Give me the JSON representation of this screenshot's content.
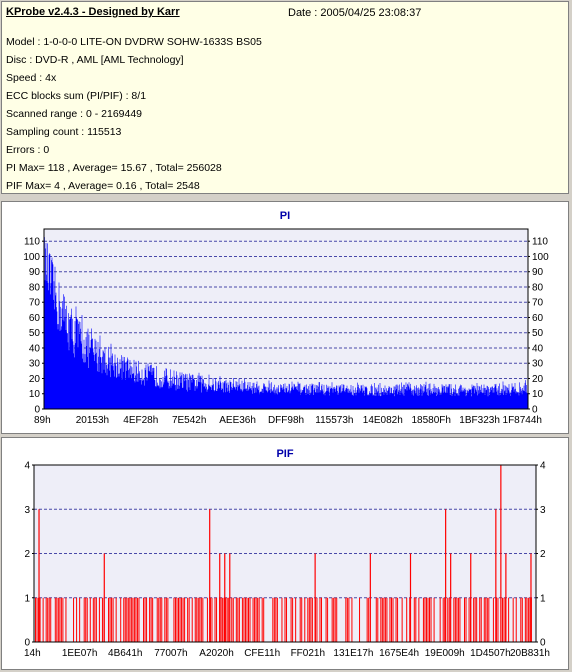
{
  "header": {
    "title": "KProbe v2.4.3 - Designed by Karr",
    "date": "Date : 2005/04/25 23:08:37"
  },
  "info": {
    "model": "Model : 1-0-0-0 LITE-ON DVDRW SOHW-1633S BS05",
    "disc": "Disc : DVD-R , AML [AML Technology]",
    "speed": "Speed : 4x",
    "ecc": "ECC blocks sum (PI/PIF) : 8/1",
    "range": "Scanned range : 0 - 2169449",
    "sampling": "Sampling count : 115513",
    "errors": "Errors : 0",
    "pi_summary": "PI Max= 118 , Average= 15.67 , Total= 256028",
    "pif_summary": "PIF Max= 4 , Average= 0.16 , Total= 2548"
  },
  "colors": {
    "pi_bars": "#0000ff",
    "pif_bars": "#ff0000",
    "plot_bg": "#eeeef8",
    "grid": "#4848a8",
    "title": "#0000aa"
  },
  "chart_data": [
    {
      "type": "bar",
      "title": "PI",
      "xlabel": "",
      "ylabel": "",
      "ylim": [
        0,
        118
      ],
      "y_ticks": [
        0,
        10,
        20,
        30,
        40,
        50,
        60,
        70,
        80,
        90,
        100,
        110
      ],
      "x_tick_labels": [
        "89h",
        "20153h",
        "4EF28h",
        "7E542h",
        "AEE36h",
        "DFF98h",
        "115573h",
        "14E082h",
        "18580Fh",
        "1BF323h",
        "1F8744h"
      ],
      "grid": "horizontal dashed",
      "envelope": {
        "x": [
          0,
          0.01,
          0.03,
          0.06,
          0.1,
          0.15,
          0.2,
          0.25,
          0.3,
          0.35,
          0.4,
          0.45,
          0.5,
          0.6,
          0.7,
          0.8,
          0.9,
          1.0
        ],
        "avg": [
          98,
          80,
          62,
          45,
          33,
          26,
          21,
          18,
          15.5,
          14,
          13.5,
          12.5,
          12,
          11.5,
          11,
          11.5,
          11,
          12
        ],
        "peak": [
          118,
          112,
          90,
          70,
          52,
          40,
          33,
          29,
          25,
          22,
          20,
          19,
          18,
          17.5,
          17,
          18,
          17,
          19
        ]
      }
    },
    {
      "type": "bar",
      "title": "PIF",
      "xlabel": "",
      "ylabel": "",
      "ylim": [
        0,
        4
      ],
      "y_ticks": [
        0,
        1,
        2,
        3,
        4
      ],
      "x_tick_labels": [
        "14h",
        "1EE07h",
        "4B641h",
        "77007h",
        "A2020h",
        "CFE11h",
        "FF021h",
        "131E17h",
        "1675E4h",
        "19E009h",
        "1D4507h",
        "20B831h"
      ],
      "grid": "horizontal dashed",
      "notable_values": [
        {
          "x": 0.01,
          "value": 3
        },
        {
          "x": 0.14,
          "value": 2
        },
        {
          "x": 0.35,
          "value": 3
        },
        {
          "x": 0.37,
          "value": 2
        },
        {
          "x": 0.38,
          "value": 2
        },
        {
          "x": 0.39,
          "value": 2
        },
        {
          "x": 0.56,
          "value": 2
        },
        {
          "x": 0.67,
          "value": 2
        },
        {
          "x": 0.75,
          "value": 2
        },
        {
          "x": 0.82,
          "value": 3
        },
        {
          "x": 0.83,
          "value": 2
        },
        {
          "x": 0.87,
          "value": 2
        },
        {
          "x": 0.92,
          "value": 3
        },
        {
          "x": 0.93,
          "value": 4
        },
        {
          "x": 0.94,
          "value": 2
        },
        {
          "x": 0.99,
          "value": 2
        }
      ]
    }
  ]
}
